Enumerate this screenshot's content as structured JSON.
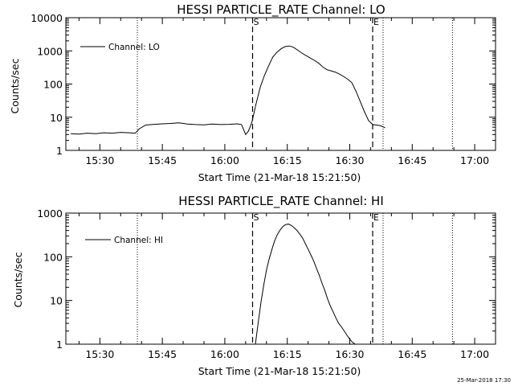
{
  "chart_data": [
    {
      "type": "line",
      "title": "HESSI PARTICLE_RATE Channel: LO",
      "xlabel": "Start Time (21-Mar-18 15:21:50)",
      "ylabel": "Counts/sec",
      "y_scale": "log",
      "ylim": [
        1,
        10000
      ],
      "xlim": [
        "15:21:50",
        "17:05:00"
      ],
      "x_tick_labels": [
        "15:30",
        "15:45",
        "16:00",
        "16:15",
        "16:30",
        "16:45",
        "17:00"
      ],
      "y_tick_labels": [
        "1",
        "10",
        "100",
        "1000",
        "10000"
      ],
      "legend": {
        "position": "top-left",
        "entries": [
          "Channel: LO"
        ]
      },
      "markers": [
        {
          "label": "S",
          "time": "16:06:40",
          "style": "dashed"
        },
        {
          "label": "E",
          "time": "16:35:30",
          "style": "dashed"
        }
      ],
      "vertical_lines_dotted": [
        "15:39:00",
        "16:38:00",
        "16:54:40"
      ],
      "series": [
        {
          "x": [
            "15:23:00",
            "15:25:00",
            "15:27:00",
            "15:29:00",
            "15:31:00",
            "15:33:00",
            "15:35:00",
            "15:37:00",
            "15:38:30",
            "15:39:30",
            "15:41:00",
            "15:43:00",
            "15:45:00",
            "15:47:00",
            "15:49:00",
            "15:51:00",
            "15:53:00",
            "15:55:00",
            "15:57:00",
            "15:59:00",
            "16:01:00",
            "16:03:00",
            "16:04:00",
            "16:05:00",
            "16:05:40",
            "16:06:30",
            "16:07:30",
            "16:08:30",
            "16:09:30",
            "16:10:30",
            "16:11:30",
            "16:12:30",
            "16:13:30",
            "16:14:30",
            "16:15:30",
            "16:16:30",
            "16:17:30",
            "16:18:30",
            "16:19:30",
            "16:20:30",
            "16:21:30",
            "16:22:30",
            "16:23:30",
            "16:24:30",
            "16:25:30",
            "16:26:30",
            "16:27:30",
            "16:28:30",
            "16:29:30",
            "16:30:30",
            "16:31:30",
            "16:32:30",
            "16:33:30",
            "16:34:30",
            "16:35:30",
            "16:36:30",
            "16:37:30",
            "16:38:30"
          ],
          "values": [
            3.2,
            3.1,
            3.3,
            3.2,
            3.4,
            3.3,
            3.5,
            3.4,
            3.3,
            4.5,
            5.8,
            6.1,
            6.3,
            6.5,
            6.8,
            6.2,
            6.0,
            5.9,
            6.2,
            6.0,
            6.1,
            6.3,
            6.0,
            3.0,
            3.8,
            7,
            25,
            80,
            180,
            350,
            650,
            900,
            1150,
            1350,
            1400,
            1280,
            1050,
            860,
            720,
            610,
            520,
            430,
            330,
            270,
            250,
            230,
            200,
            170,
            140,
            110,
            60,
            30,
            15,
            8,
            6,
            5.8,
            5.5,
            4.8
          ]
        }
      ]
    },
    {
      "type": "line",
      "title": "HESSI PARTICLE_RATE Channel: HI",
      "xlabel": "Start Time (21-Mar-18 15:21:50)",
      "ylabel": "Counts/sec",
      "y_scale": "log",
      "ylim": [
        1,
        1000
      ],
      "xlim": [
        "15:21:50",
        "17:05:00"
      ],
      "x_tick_labels": [
        "15:30",
        "15:45",
        "16:00",
        "16:15",
        "16:30",
        "16:45",
        "17:00"
      ],
      "y_tick_labels": [
        "1",
        "10",
        "100",
        "1000"
      ],
      "legend": {
        "position": "top-left",
        "entries": [
          "Channel: HI"
        ]
      },
      "markers": [
        {
          "label": "S",
          "time": "16:06:40",
          "style": "dashed"
        },
        {
          "label": "E",
          "time": "16:35:30",
          "style": "dashed"
        }
      ],
      "vertical_lines_dotted": [
        "15:39:00",
        "16:38:00",
        "16:54:40"
      ],
      "series": [
        {
          "x": [
            "16:07:20",
            "16:08:00",
            "16:08:40",
            "16:09:20",
            "16:10:00",
            "16:10:40",
            "16:11:20",
            "16:12:00",
            "16:12:40",
            "16:13:20",
            "16:14:00",
            "16:14:40",
            "16:15:20",
            "16:16:00",
            "16:16:40",
            "16:17:20",
            "16:18:00",
            "16:18:40",
            "16:19:20",
            "16:20:00",
            "16:20:40",
            "16:21:20",
            "16:22:00",
            "16:22:40",
            "16:23:20",
            "16:24:00",
            "16:24:40",
            "16:25:20",
            "16:26:00",
            "16:26:40",
            "16:27:20",
            "16:28:00",
            "16:28:40",
            "16:29:20",
            "16:30:00",
            "16:30:40",
            "16:31:20"
          ],
          "values": [
            1,
            3,
            9,
            22,
            50,
            90,
            150,
            240,
            330,
            420,
            500,
            550,
            560,
            520,
            460,
            400,
            330,
            270,
            200,
            150,
            110,
            80,
            55,
            38,
            25,
            17,
            11,
            7.5,
            5.5,
            4,
            3,
            2.5,
            2,
            1.6,
            1.3,
            1.1,
            1
          ]
        }
      ]
    }
  ],
  "footer": {
    "timestamp": "25-Mar-2018 17:30"
  }
}
